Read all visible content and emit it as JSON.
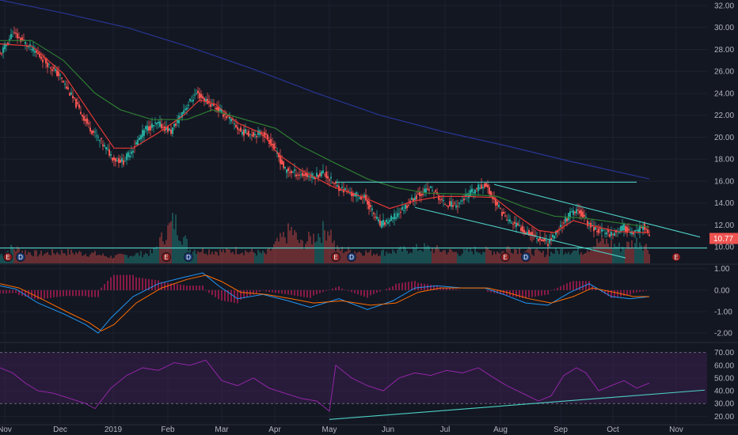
{
  "colors": {
    "background": "#131722",
    "grid": "#1e2230",
    "up": "#26a69a",
    "down": "#ef5350",
    "sma_red": "#e53935",
    "sma_green": "#2e7d32",
    "sma_blue": "#283593",
    "trendline": "#4dd0c4",
    "macd_line": "#2196f3",
    "signal_line": "#ff6d00",
    "histogram": "#e91e63",
    "rsi_line": "#9c27b0",
    "rsi_band": "#3b1f4f",
    "earnings_badge": "#8e1b1b",
    "dividend_badge": "#1c3d7a",
    "price_label": "#ef5350"
  },
  "chart_data": [
    {
      "type": "candlestick",
      "panel": "price",
      "x_labels": [
        "Nov",
        "Dec",
        "2019",
        "Feb",
        "Mar",
        "Apr",
        "May",
        "Jun",
        "Jul",
        "Aug",
        "Sep",
        "Oct",
        "Nov"
      ],
      "y_ticks": [
        "32.00",
        "30.00",
        "28.00",
        "26.00",
        "24.00",
        "22.00",
        "20.00",
        "18.00",
        "16.00",
        "14.00",
        "12.00",
        "10.00"
      ],
      "ylim": [
        8.5,
        32.5
      ],
      "last_price": "10.77",
      "close_path": [
        [
          0,
          27.5
        ],
        [
          8,
          29.5
        ],
        [
          18,
          28.3
        ],
        [
          28,
          27.0
        ],
        [
          38,
          25.5
        ],
        [
          48,
          23.0
        ],
        [
          56,
          21.0
        ],
        [
          64,
          19.5
        ],
        [
          72,
          18.0
        ],
        [
          78,
          17.8
        ],
        [
          84,
          19.0
        ],
        [
          92,
          20.8
        ],
        [
          100,
          21.2
        ],
        [
          108,
          20.5
        ],
        [
          116,
          22.5
        ],
        [
          124,
          24.0
        ],
        [
          130,
          23.3
        ],
        [
          136,
          22.7
        ],
        [
          144,
          21.8
        ],
        [
          152,
          20.5
        ],
        [
          160,
          20.3
        ],
        [
          166,
          20.4
        ],
        [
          172,
          19.3
        ],
        [
          180,
          17.0
        ],
        [
          190,
          16.6
        ],
        [
          198,
          16.4
        ],
        [
          204,
          16.8
        ],
        [
          212,
          15.6
        ],
        [
          222,
          14.8
        ],
        [
          230,
          14.5
        ],
        [
          240,
          12.0
        ],
        [
          248,
          12.6
        ],
        [
          256,
          13.7
        ],
        [
          264,
          14.8
        ],
        [
          272,
          15.3
        ],
        [
          280,
          14.0
        ],
        [
          288,
          13.8
        ],
        [
          298,
          15.0
        ],
        [
          306,
          15.7
        ],
        [
          312,
          14.2
        ],
        [
          320,
          12.5
        ],
        [
          330,
          11.6
        ],
        [
          340,
          10.8
        ],
        [
          346,
          10.4
        ],
        [
          352,
          11.5
        ],
        [
          360,
          13.0
        ],
        [
          366,
          13.3
        ],
        [
          372,
          12.0
        ],
        [
          378,
          11.5
        ],
        [
          386,
          11.2
        ],
        [
          394,
          11.8
        ],
        [
          400,
          11.1
        ],
        [
          406,
          11.9
        ],
        [
          410,
          10.9
        ]
      ],
      "volume_days": [
        [
          0,
          0.18
        ],
        [
          8,
          0.33
        ],
        [
          16,
          0.25
        ],
        [
          24,
          0.2
        ],
        [
          40,
          0.24
        ],
        [
          60,
          0.2
        ],
        [
          70,
          0.14
        ],
        [
          96,
          0.22
        ],
        [
          110,
          0.9
        ],
        [
          120,
          0.3
        ],
        [
          140,
          0.25
        ],
        [
          150,
          0.28
        ],
        [
          168,
          0.2
        ],
        [
          184,
          0.7
        ],
        [
          190,
          0.4
        ],
        [
          208,
          0.76
        ],
        [
          212,
          0.3
        ],
        [
          236,
          0.22
        ],
        [
          250,
          0.26
        ],
        [
          268,
          0.33
        ],
        [
          290,
          0.22
        ],
        [
          300,
          0.28
        ],
        [
          318,
          0.25
        ],
        [
          320,
          0.33
        ],
        [
          328,
          0.3
        ],
        [
          344,
          0.2
        ],
        [
          356,
          0.28
        ],
        [
          368,
          0.26
        ],
        [
          380,
          0.48
        ],
        [
          392,
          0.34
        ],
        [
          404,
          0.48
        ],
        [
          410,
          0.3
        ]
      ],
      "moving_averages": [
        {
          "color_key": "sma_red",
          "points": [
            [
              0,
              28.5
            ],
            [
              20,
              28.3
            ],
            [
              40,
              25.8
            ],
            [
              60,
              21.5
            ],
            [
              72,
              19.0
            ],
            [
              84,
              19.0
            ],
            [
              100,
              20.4
            ],
            [
              116,
              22.0
            ],
            [
              126,
              23.4
            ],
            [
              136,
              23.0
            ],
            [
              150,
              21.3
            ],
            [
              166,
              20.3
            ],
            [
              176,
              18.4
            ],
            [
              190,
              17.0
            ],
            [
              210,
              15.5
            ],
            [
              230,
              14.5
            ],
            [
              246,
              13.5
            ],
            [
              262,
              14.2
            ],
            [
              278,
              14.6
            ],
            [
              296,
              14.6
            ],
            [
              312,
              14.5
            ],
            [
              326,
              12.9
            ],
            [
              340,
              11.5
            ],
            [
              350,
              11.3
            ],
            [
              362,
              12.4
            ],
            [
              372,
              12.0
            ],
            [
              390,
              11.4
            ],
            [
              410,
              11.3
            ]
          ]
        },
        {
          "color_key": "sma_green",
          "points": [
            [
              0,
              28.8
            ],
            [
              20,
              28.8
            ],
            [
              40,
              27.0
            ],
            [
              60,
              24.0
            ],
            [
              76,
              22.5
            ],
            [
              96,
              21.6
            ],
            [
              118,
              21.6
            ],
            [
              134,
              22.5
            ],
            [
              150,
              21.8
            ],
            [
              174,
              20.8
            ],
            [
              190,
              19.2
            ],
            [
              212,
              17.6
            ],
            [
              232,
              16.2
            ],
            [
              250,
              15.4
            ],
            [
              270,
              14.9
            ],
            [
              296,
              14.8
            ],
            [
              314,
              14.6
            ],
            [
              330,
              13.7
            ],
            [
              350,
              12.8
            ],
            [
              370,
              12.6
            ],
            [
              390,
              12.2
            ],
            [
              410,
              11.8
            ]
          ]
        },
        {
          "color_key": "sma_blue",
          "points": [
            [
              0,
              32.5
            ],
            [
              40,
              31.3
            ],
            [
              80,
              30.0
            ],
            [
              120,
              28.2
            ],
            [
              160,
              26.2
            ],
            [
              200,
              24.0
            ],
            [
              240,
              22.0
            ],
            [
              280,
              20.5
            ],
            [
              320,
              19.2
            ],
            [
              360,
              17.8
            ],
            [
              410,
              16.2
            ]
          ]
        }
      ],
      "trendlines": [
        {
          "from": [
            380,
            9.9
          ],
          "to": [
            0,
            9.9
          ],
          "extend_left": true,
          "extend_right": true
        },
        {
          "from": [
            212,
            15.9
          ],
          "to": [
            402,
            15.9
          ]
        },
        {
          "from": [
            312,
            15.7
          ],
          "to": [
            442,
            10.9
          ]
        },
        {
          "from": [
            262,
            13.6
          ],
          "to": [
            395,
            9.0
          ]
        }
      ],
      "event_badges": [
        {
          "label": "E",
          "type": "earnings",
          "day": 3
        },
        {
          "label": "D",
          "type": "dividend",
          "day": 11
        },
        {
          "label": "E",
          "type": "earnings",
          "day": 103
        },
        {
          "label": "D",
          "type": "dividend",
          "day": 117
        },
        {
          "label": "E",
          "type": "earnings",
          "day": 210
        },
        {
          "label": "D",
          "type": "dividend",
          "day": 220
        },
        {
          "label": "E",
          "type": "earnings",
          "day": 317
        },
        {
          "label": "D",
          "type": "dividend",
          "day": 330
        },
        {
          "label": "E",
          "type": "earnings",
          "day": 425
        }
      ]
    },
    {
      "type": "line",
      "panel": "macd",
      "y_ticks": [
        "1.00",
        "0.00",
        "-1.00",
        "-2.00"
      ],
      "ylim": [
        -2.4,
        1.1
      ],
      "series": [
        {
          "color_key": "macd_line",
          "points": [
            [
              0,
              0.2
            ],
            [
              10,
              0.05
            ],
            [
              24,
              -0.6
            ],
            [
              40,
              -1.1
            ],
            [
              54,
              -1.6
            ],
            [
              62,
              -2.0
            ],
            [
              70,
              -1.3
            ],
            [
              84,
              -0.3
            ],
            [
              100,
              0.3
            ],
            [
              116,
              0.6
            ],
            [
              128,
              0.8
            ],
            [
              138,
              0.2
            ],
            [
              150,
              -0.4
            ],
            [
              166,
              -0.2
            ],
            [
              182,
              -0.5
            ],
            [
              196,
              -0.8
            ],
            [
              214,
              -0.4
            ],
            [
              232,
              -0.9
            ],
            [
              248,
              -0.5
            ],
            [
              262,
              0.1
            ],
            [
              276,
              0.2
            ],
            [
              292,
              0.1
            ],
            [
              306,
              0.1
            ],
            [
              318,
              -0.2
            ],
            [
              332,
              -0.6
            ],
            [
              346,
              -0.7
            ],
            [
              360,
              -0.1
            ],
            [
              372,
              0.3
            ],
            [
              386,
              -0.3
            ],
            [
              398,
              -0.4
            ],
            [
              410,
              -0.3
            ]
          ]
        },
        {
          "color_key": "signal_line",
          "points": [
            [
              0,
              0.3
            ],
            [
              12,
              0.1
            ],
            [
              26,
              -0.4
            ],
            [
              42,
              -1.0
            ],
            [
              56,
              -1.5
            ],
            [
              64,
              -1.9
            ],
            [
              72,
              -1.6
            ],
            [
              86,
              -0.6
            ],
            [
              102,
              0.1
            ],
            [
              118,
              0.5
            ],
            [
              130,
              0.7
            ],
            [
              140,
              0.4
            ],
            [
              152,
              -0.1
            ],
            [
              168,
              -0.2
            ],
            [
              184,
              -0.4
            ],
            [
              198,
              -0.6
            ],
            [
              216,
              -0.5
            ],
            [
              234,
              -0.7
            ],
            [
              250,
              -0.6
            ],
            [
              264,
              -0.1
            ],
            [
              278,
              0.1
            ],
            [
              294,
              0.1
            ],
            [
              308,
              0.1
            ],
            [
              320,
              -0.1
            ],
            [
              334,
              -0.4
            ],
            [
              348,
              -0.6
            ],
            [
              362,
              -0.3
            ],
            [
              374,
              0.1
            ],
            [
              388,
              -0.1
            ],
            [
              400,
              -0.3
            ],
            [
              410,
              -0.3
            ]
          ]
        }
      ]
    },
    {
      "type": "line",
      "panel": "rsi",
      "y_ticks": [
        "70.00",
        "60.00",
        "50.00",
        "40.00",
        "30.00",
        "20.00"
      ],
      "ylim": [
        14,
        76
      ],
      "band": [
        30,
        70
      ],
      "series": [
        {
          "color_key": "rsi_line",
          "points": [
            [
              0,
              58
            ],
            [
              8,
              54
            ],
            [
              16,
              46
            ],
            [
              24,
              40
            ],
            [
              34,
              38
            ],
            [
              44,
              34
            ],
            [
              54,
              30
            ],
            [
              60,
              26
            ],
            [
              70,
              42
            ],
            [
              80,
              52
            ],
            [
              90,
              58
            ],
            [
              100,
              56
            ],
            [
              110,
              62
            ],
            [
              120,
              60
            ],
            [
              130,
              64
            ],
            [
              140,
              48
            ],
            [
              150,
              44
            ],
            [
              160,
              50
            ],
            [
              170,
              42
            ],
            [
              180,
              38
            ],
            [
              190,
              34
            ],
            [
              200,
              32
            ],
            [
              208,
              24
            ],
            [
              212,
              60
            ],
            [
              222,
              50
            ],
            [
              232,
              44
            ],
            [
              242,
              40
            ],
            [
              252,
              50
            ],
            [
              262,
              54
            ],
            [
              272,
              52
            ],
            [
              282,
              56
            ],
            [
              292,
              54
            ],
            [
              302,
              58
            ],
            [
              312,
              50
            ],
            [
              320,
              44
            ],
            [
              330,
              38
            ],
            [
              340,
              32
            ],
            [
              348,
              36
            ],
            [
              356,
              52
            ],
            [
              364,
              58
            ],
            [
              370,
              54
            ],
            [
              378,
              40
            ],
            [
              386,
              44
            ],
            [
              394,
              48
            ],
            [
              402,
              42
            ],
            [
              410,
              46
            ]
          ]
        }
      ],
      "trendlines": [
        {
          "from": [
            208,
            17.5
          ],
          "to": [
            445,
            40.5
          ]
        }
      ]
    }
  ]
}
